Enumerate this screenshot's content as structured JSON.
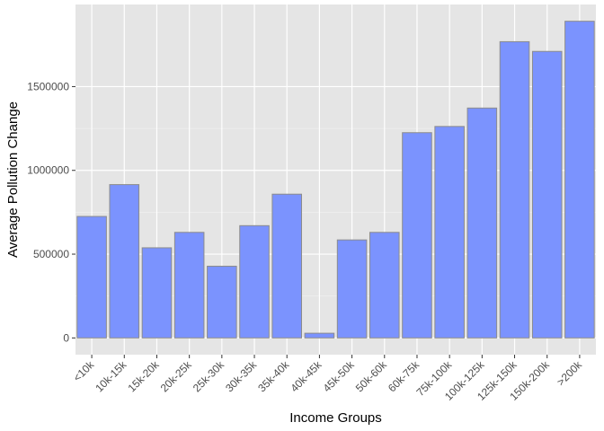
{
  "chart_data": {
    "type": "bar",
    "title": "",
    "xlabel": "Income Groups",
    "ylabel": "Average Pollution Change",
    "categories": [
      "<10k",
      "10k-15k",
      "15k-20k",
      "20k-25k",
      "25k-30k",
      "30k-35k",
      "35k-40k",
      "40k-45k",
      "45k-50k",
      "50k-60k",
      "60k-75k",
      "75k-100k",
      "100k-125k",
      "125k-150k",
      "150k-200k",
      ">200k"
    ],
    "values": [
      725000,
      915000,
      538000,
      630000,
      428000,
      670000,
      858000,
      28000,
      585000,
      630000,
      1225000,
      1262000,
      1372000,
      1768000,
      1710000,
      1890000
    ],
    "ylim": [
      -100000,
      1990000
    ],
    "yticks": [
      0,
      500000,
      1000000,
      1500000
    ],
    "ytick_labels": [
      "0",
      "500000",
      "1000000",
      "1500000"
    ],
    "grid": true,
    "legend": "none",
    "colors": {
      "bar_fill": "#7b93fe",
      "bar_stroke": "#8c8c8c",
      "panel_bg": "#e5e5e5",
      "grid_major": "#ffffff",
      "grid_minor": "#f2f2f2",
      "tick_text": "#4d4d4d",
      "tick_mark": "#333333"
    }
  }
}
